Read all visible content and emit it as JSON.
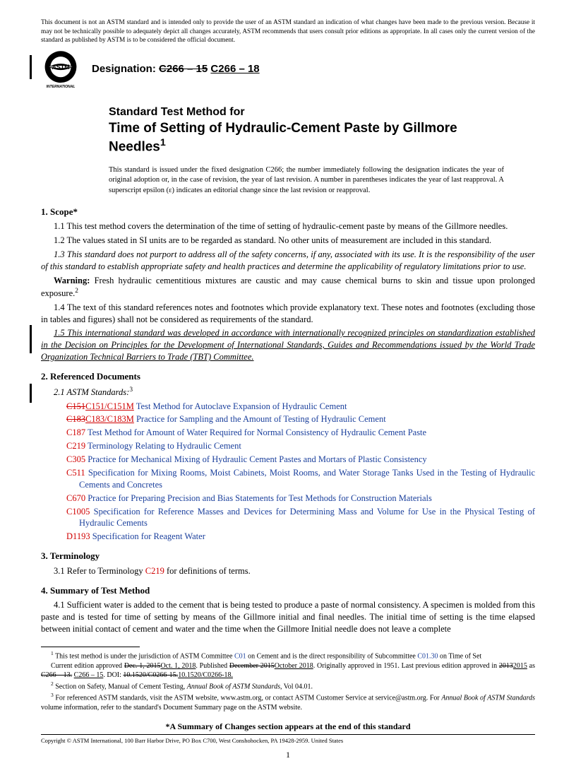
{
  "disclaimer": "This document is not an ASTM standard and is intended only to provide the user of an ASTM standard an indication of what changes have been made to the previous version. Because it may not be technically possible to adequately depict all changes accurately, ASTM recommends that users consult prior editions as appropriate. In all cases only the current version of the standard as published by ASTM is to be considered the official document.",
  "designation_label": "Designation: ",
  "designation_old": "C266 – 15",
  "designation_new": "C266 – 18",
  "logo_subtext": "INTERNATIONAL",
  "title_pre": "Standard Test Method for",
  "title_main": "Time of Setting of Hydraulic-Cement Paste by Gillmore Needles",
  "title_sup": "1",
  "issuance": "This standard is issued under the fixed designation C266; the number immediately following the designation indicates the year of original adoption or, in the case of revision, the year of last revision. A number in parentheses indicates the year of last reapproval. A superscript epsilon (ε) indicates an editorial change since the last revision or reapproval.",
  "sections": {
    "scope": {
      "head": "1. Scope*",
      "p11": "1.1  This test method covers the determination of the time of setting of hydraulic-cement paste by means of the Gillmore needles.",
      "p12": "1.2  The values stated in SI units are to be regarded as standard. No other units of measurement are included in this standard.",
      "p13": "1.3  This standard does not purport to address all of the safety concerns, if any, associated with its use. It is the responsibility of the user of this standard to establish appropriate safety and health practices and determine the applicability of regulatory limitations prior to use.",
      "p13_warn_label": "Warning:",
      "p13_warn": " Fresh hydraulic cementitious mixtures are caustic and may cause chemical burns to skin and tissue upon prolonged exposure.",
      "p14": "1.4  The text of this standard references notes and footnotes which provide explanatory text. These notes and footnotes (excluding those in tables and figures) shall not be considered as requirements of the standard.",
      "p15": "1.5  This international standard was developed in accordance with internationally recognized principles on standardization established in the Decision on Principles for the Development of International Standards, Guides and Recommendations issued by the World Trade Organization Technical Barriers to Trade (TBT) Committee."
    },
    "referenced": {
      "head": "2. Referenced Documents",
      "p21": "2.1  ASTM Standards:",
      "items": [
        {
          "old": "C151",
          "code": "C151/C151M",
          "title": "Test Method for Autoclave Expansion of Hydraulic Cement"
        },
        {
          "old": "C183",
          "code": "C183/C183M",
          "title": "Practice for Sampling and the Amount of Testing of Hydraulic Cement"
        },
        {
          "old": "",
          "code": "C187",
          "title": "Test Method for Amount of Water Required for Normal Consistency of Hydraulic Cement Paste"
        },
        {
          "old": "",
          "code": "C219",
          "title": "Terminology Relating to Hydraulic Cement"
        },
        {
          "old": "",
          "code": "C305",
          "title": "Practice for Mechanical Mixing of Hydraulic Cement Pastes and Mortars of Plastic Consistency"
        },
        {
          "old": "",
          "code": "C511",
          "title": "Specification for Mixing Rooms, Moist Cabinets, Moist Rooms, and Water Storage Tanks Used in the Testing of Hydraulic Cements and Concretes"
        },
        {
          "old": "",
          "code": "C670",
          "title": "Practice for Preparing Precision and Bias Statements for Test Methods for Construction Materials"
        },
        {
          "old": "",
          "code": "C1005",
          "title": "Specification for Reference Masses and Devices for Determining Mass and Volume for Use in the Physical Testing of Hydraulic Cements"
        },
        {
          "old": "",
          "code": "D1193",
          "title": "Specification for Reagent Water"
        }
      ]
    },
    "terminology": {
      "head": "3. Terminology",
      "p31a": "3.1  Refer to Terminology ",
      "p31_code": "C219",
      "p31b": " for definitions of terms."
    },
    "summary": {
      "head": "4. Summary of Test Method",
      "p41": "4.1  Sufficient water is added to the cement that is being tested to produce a paste of normal consistency. A specimen is molded from this paste and is tested for time of setting by means of the Gillmore initial and final needles. The initial time of setting is the time elapsed between initial contact of cement and water and the time when the Gillmore Initial needle does not leave a complete"
    }
  },
  "footnotes": {
    "f1a": " This test method is under the jurisdiction of ASTM Committee ",
    "f1_c01": "C01",
    "f1b": " on Cement and is the direct responsibility of Subcommittee ",
    "f1_c0130": "C01.30",
    "f1c": " on Time of Set",
    "f1d_a": "Current edition approved ",
    "f1d_old1": "Dec. 1, 2015",
    "f1d_new1": "Oct. 1, 2018",
    "f1d_b": ". Published ",
    "f1d_old2": "December 2015",
    "f1d_new2": "October 2018",
    "f1d_c": ". Originally approved in 1951. Last previous edition approved in ",
    "f1d_old3": "2013",
    "f1d_new3": "2015",
    "f1d_d": " as ",
    "f1d_old4": "C266 – 13.",
    "f1d_new4": "C266 – 15",
    "f1d_e": ". DOI: ",
    "f1d_old5": "10.1520/C0266-15.",
    "f1d_new5": "10.1520/C0266-18.",
    "f2": " Section on Safety, Manual of Cement Testing, ",
    "f2_it": "Annual Book of ASTM Standards",
    "f2b": ", Vol 04.01.",
    "f3a": " For referenced ASTM standards, visit the ASTM website, www.astm.org, or contact ASTM Customer Service at service@astm.org. For ",
    "f3_it": "Annual Book of ASTM Standards",
    "f3b": " volume information, refer to the standard's Document Summary page on the ASTM website."
  },
  "summary_note": "*A Summary of Changes section appears at the end of this standard",
  "copyright": "Copyright © ASTM International, 100 Barr Harbor Drive, PO Box C700, West Conshohocken, PA 19428-2959. United States",
  "page_num": "1"
}
